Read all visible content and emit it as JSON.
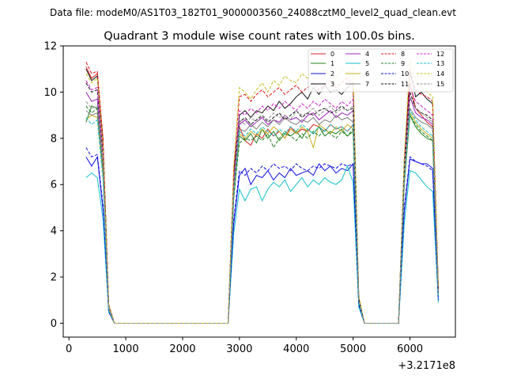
{
  "figure": {
    "suptitle": "Data file: modeM0/AS1T03_182T01_9000003560_24088cztM0_level2_quad_clean.evt"
  },
  "chart_data": {
    "type": "line",
    "title": "Quadrant 3 module wise count rates with 100.0s bins.",
    "xlabel": "",
    "ylabel": "",
    "x_offset_label": "+3.2171e8",
    "xlim": [
      -100,
      6800
    ],
    "ylim": [
      -0.6,
      12
    ],
    "xticks": [
      0,
      1000,
      2000,
      3000,
      4000,
      5000,
      6000
    ],
    "yticks": [
      0,
      2,
      4,
      6,
      8,
      10,
      12
    ],
    "xtick_labels": [
      "0",
      "1000",
      "2000",
      "3000",
      "4000",
      "5000",
      "6000"
    ],
    "ytick_labels": [
      "0",
      "2",
      "4",
      "6",
      "8",
      "10",
      "12"
    ],
    "grid": false,
    "legend_position": "top-right",
    "x": [
      300,
      400,
      500,
      600,
      700,
      800,
      900,
      1000,
      1100,
      1200,
      1300,
      1400,
      1500,
      1600,
      1700,
      1800,
      1900,
      2000,
      2100,
      2200,
      2300,
      2400,
      2500,
      2600,
      2700,
      2800,
      2900,
      3000,
      3100,
      3200,
      3300,
      3400,
      3500,
      3600,
      3700,
      3800,
      3900,
      4000,
      4100,
      4200,
      4300,
      4400,
      4500,
      4600,
      4700,
      4800,
      4900,
      5000,
      5100,
      5200,
      5300,
      5400,
      5500,
      5600,
      5700,
      5800,
      5900,
      6000,
      6100,
      6200,
      6300,
      6400,
      6500
    ],
    "series": [
      {
        "name": "0",
        "color": "#d62020",
        "dash": "solid",
        "values": [
          11.1,
          10.6,
          10.8,
          7.8,
          0.8,
          0.0,
          0.0,
          0.0,
          0.0,
          0.0,
          0.0,
          0.0,
          0.0,
          0.0,
          0.0,
          0.0,
          0.0,
          0.0,
          0.0,
          0.0,
          0.0,
          0.0,
          0.0,
          0.0,
          0.0,
          0.0,
          5.6,
          8.5,
          7.9,
          7.7,
          8.2,
          8.0,
          8.4,
          8.1,
          8.3,
          8.0,
          8.5,
          8.2,
          8.4,
          8.3,
          8.6,
          8.5,
          8.3,
          8.6,
          8.4,
          8.5,
          8.3,
          8.6,
          1.0,
          0.0,
          0.0,
          0.0,
          0.0,
          0.0,
          0.0,
          0.0,
          6.3,
          10.4,
          9.3,
          9.0,
          8.7,
          8.5,
          1.4
        ]
      },
      {
        "name": "1",
        "color": "#208020",
        "dash": "solid",
        "values": [
          8.7,
          9.4,
          9.3,
          6.5,
          0.7,
          0.0,
          0.0,
          0.0,
          0.0,
          0.0,
          0.0,
          0.0,
          0.0,
          0.0,
          0.0,
          0.0,
          0.0,
          0.0,
          0.0,
          0.0,
          0.0,
          0.0,
          0.0,
          0.0,
          0.0,
          0.0,
          5.4,
          8.1,
          7.9,
          8.2,
          7.8,
          8.4,
          8.0,
          8.3,
          7.9,
          8.2,
          8.1,
          8.3,
          8.0,
          8.4,
          8.2,
          8.5,
          8.1,
          8.3,
          8.2,
          8.4,
          8.1,
          8.3,
          0.9,
          0.0,
          0.0,
          0.0,
          0.0,
          0.0,
          0.0,
          0.0,
          6.0,
          9.0,
          8.5,
          8.2,
          8.0,
          7.9,
          1.2
        ]
      },
      {
        "name": "2",
        "color": "#1010e0",
        "dash": "solid",
        "values": [
          7.2,
          6.8,
          7.2,
          4.9,
          0.5,
          0.0,
          0.0,
          0.0,
          0.0,
          0.0,
          0.0,
          0.0,
          0.0,
          0.0,
          0.0,
          0.0,
          0.0,
          0.0,
          0.0,
          0.0,
          0.0,
          0.0,
          0.0,
          0.0,
          0.0,
          0.0,
          4.3,
          6.4,
          6.7,
          6.0,
          6.4,
          6.3,
          6.6,
          6.2,
          6.5,
          6.3,
          6.7,
          6.4,
          6.5,
          6.6,
          6.4,
          6.9,
          6.6,
          6.8,
          6.5,
          6.7,
          6.6,
          6.9,
          0.8,
          0.0,
          0.0,
          0.0,
          0.0,
          0.0,
          0.0,
          0.0,
          4.8,
          7.1,
          7.0,
          6.9,
          6.9,
          6.7,
          1.0
        ]
      },
      {
        "name": "3",
        "color": "#111111",
        "dash": "solid",
        "values": [
          11.0,
          10.5,
          10.7,
          7.9,
          0.8,
          0.0,
          0.0,
          0.0,
          0.0,
          0.0,
          0.0,
          0.0,
          0.0,
          0.0,
          0.0,
          0.0,
          0.0,
          0.0,
          0.0,
          0.0,
          0.0,
          0.0,
          0.0,
          0.0,
          0.0,
          0.0,
          6.5,
          9.0,
          9.2,
          8.9,
          9.2,
          9.1,
          9.4,
          9.2,
          9.6,
          9.3,
          9.5,
          9.8,
          10.0,
          9.7,
          10.2,
          9.9,
          10.3,
          10.0,
          10.1,
          9.9,
          10.2,
          10.4,
          1.1,
          0.0,
          0.0,
          0.0,
          0.0,
          0.0,
          0.0,
          0.0,
          6.9,
          10.9,
          9.8,
          10.0,
          9.7,
          9.5,
          1.6
        ]
      },
      {
        "name": "4",
        "color": "#a020c0",
        "dash": "solid",
        "values": [
          10.0,
          9.6,
          9.7,
          6.8,
          0.7,
          0.0,
          0.0,
          0.0,
          0.0,
          0.0,
          0.0,
          0.0,
          0.0,
          0.0,
          0.0,
          0.0,
          0.0,
          0.0,
          0.0,
          0.0,
          0.0,
          0.0,
          0.0,
          0.0,
          0.0,
          0.0,
          5.9,
          8.6,
          8.8,
          8.5,
          8.7,
          8.9,
          8.6,
          8.8,
          8.7,
          9.0,
          8.8,
          8.9,
          8.7,
          9.0,
          9.1,
          8.8,
          9.0,
          9.2,
          8.9,
          9.1,
          9.0,
          9.2,
          1.0,
          0.0,
          0.0,
          0.0,
          0.0,
          0.0,
          0.0,
          0.0,
          6.4,
          9.8,
          9.1,
          8.9,
          8.8,
          8.6,
          1.3
        ]
      },
      {
        "name": "5",
        "color": "#10c0c8",
        "dash": "solid",
        "values": [
          6.3,
          6.5,
          6.3,
          4.5,
          0.5,
          0.0,
          0.0,
          0.0,
          0.0,
          0.0,
          0.0,
          0.0,
          0.0,
          0.0,
          0.0,
          0.0,
          0.0,
          0.0,
          0.0,
          0.0,
          0.0,
          0.0,
          0.0,
          0.0,
          0.0,
          0.0,
          3.9,
          5.8,
          5.3,
          5.8,
          5.9,
          5.3,
          5.8,
          6.1,
          5.9,
          6.2,
          5.7,
          6.0,
          6.3,
          5.9,
          6.2,
          6.0,
          6.3,
          6.1,
          6.0,
          6.2,
          6.8,
          6.1,
          0.7,
          0.0,
          0.0,
          0.0,
          0.0,
          0.0,
          0.0,
          0.0,
          4.3,
          6.6,
          6.5,
          6.2,
          5.9,
          5.7,
          0.9
        ]
      },
      {
        "name": "6",
        "color": "#c8b020",
        "dash": "solid",
        "values": [
          8.8,
          9.0,
          8.9,
          6.4,
          0.6,
          0.0,
          0.0,
          0.0,
          0.0,
          0.0,
          0.0,
          0.0,
          0.0,
          0.0,
          0.0,
          0.0,
          0.0,
          0.0,
          0.0,
          0.0,
          0.0,
          0.0,
          0.0,
          0.0,
          0.0,
          0.0,
          5.5,
          8.2,
          8.0,
          8.3,
          8.1,
          8.4,
          8.2,
          8.5,
          8.3,
          8.0,
          8.4,
          8.2,
          8.5,
          8.3,
          7.6,
          8.6,
          8.4,
          8.2,
          8.5,
          8.3,
          8.6,
          8.4,
          0.9,
          0.0,
          0.0,
          0.0,
          0.0,
          0.0,
          0.0,
          0.0,
          6.0,
          9.1,
          8.7,
          8.4,
          8.2,
          8.0,
          1.2
        ]
      },
      {
        "name": "7",
        "color": "#808080",
        "dash": "solid",
        "values": [
          9.2,
          9.0,
          9.1,
          6.6,
          0.7,
          0.0,
          0.0,
          0.0,
          0.0,
          0.0,
          0.0,
          0.0,
          0.0,
          0.0,
          0.0,
          0.0,
          0.0,
          0.0,
          0.0,
          0.0,
          0.0,
          0.0,
          0.0,
          0.0,
          0.0,
          0.0,
          5.7,
          8.4,
          8.3,
          8.6,
          8.4,
          8.7,
          8.5,
          8.8,
          8.6,
          8.9,
          8.7,
          8.6,
          8.8,
          8.7,
          8.9,
          8.6,
          8.8,
          8.7,
          9.0,
          8.8,
          8.9,
          8.7,
          1.0,
          0.0,
          0.0,
          0.0,
          0.0,
          0.0,
          0.0,
          0.0,
          6.2,
          9.3,
          8.9,
          8.7,
          8.6,
          8.4,
          1.3
        ]
      },
      {
        "name": "8",
        "color": "#e81010",
        "dash": "dashed",
        "values": [
          11.3,
          10.8,
          10.9,
          8.0,
          0.8,
          0.0,
          0.0,
          0.0,
          0.0,
          0.0,
          0.0,
          0.0,
          0.0,
          0.0,
          0.0,
          0.0,
          0.0,
          0.0,
          0.0,
          0.0,
          0.0,
          0.0,
          0.0,
          0.0,
          0.0,
          0.0,
          6.7,
          9.8,
          9.9,
          9.6,
          9.9,
          10.1,
          9.8,
          10.0,
          10.2,
          9.9,
          10.1,
          10.3,
          10.0,
          10.2,
          10.4,
          10.1,
          10.3,
          10.5,
          10.2,
          10.4,
          10.6,
          10.3,
          1.1,
          0.0,
          0.0,
          0.0,
          0.0,
          0.0,
          0.0,
          0.0,
          7.0,
          11.0,
          10.1,
          9.9,
          9.8,
          9.6,
          1.6
        ]
      },
      {
        "name": "9",
        "color": "#208020",
        "dash": "dashed",
        "values": [
          9.4,
          9.1,
          9.3,
          6.7,
          0.7,
          0.0,
          0.0,
          0.0,
          0.0,
          0.0,
          0.0,
          0.0,
          0.0,
          0.0,
          0.0,
          0.0,
          0.0,
          0.0,
          0.0,
          0.0,
          0.0,
          0.0,
          0.0,
          0.0,
          0.0,
          0.0,
          5.5,
          7.8,
          8.0,
          7.9,
          8.1,
          7.9,
          8.2,
          7.6,
          8.0,
          8.3,
          8.1,
          7.9,
          8.2,
          8.0,
          8.3,
          8.1,
          8.4,
          8.2,
          8.0,
          8.3,
          8.1,
          8.4,
          0.9,
          0.0,
          0.0,
          0.0,
          0.0,
          0.0,
          0.0,
          0.0,
          6.0,
          9.0,
          8.6,
          8.3,
          8.1,
          7.9,
          1.2
        ]
      },
      {
        "name": "10",
        "color": "#1010e0",
        "dash": "dashed",
        "values": [
          7.6,
          7.2,
          7.3,
          5.1,
          0.5,
          0.0,
          0.0,
          0.0,
          0.0,
          0.0,
          0.0,
          0.0,
          0.0,
          0.0,
          0.0,
          0.0,
          0.0,
          0.0,
          0.0,
          0.0,
          0.0,
          0.0,
          0.0,
          0.0,
          0.0,
          0.0,
          4.5,
          6.6,
          6.4,
          6.7,
          6.5,
          6.8,
          6.6,
          6.9,
          6.7,
          6.8,
          6.6,
          6.9,
          6.7,
          6.6,
          6.8,
          6.7,
          6.9,
          6.8,
          6.7,
          6.9,
          6.8,
          6.9,
          0.8,
          0.0,
          0.0,
          0.0,
          0.0,
          0.0,
          0.0,
          0.0,
          5.0,
          7.2,
          7.0,
          6.9,
          6.8,
          6.6,
          1.0
        ]
      },
      {
        "name": "11",
        "color": "#111111",
        "dash": "dashed",
        "values": [
          10.4,
          10.0,
          10.1,
          7.3,
          0.7,
          0.0,
          0.0,
          0.0,
          0.0,
          0.0,
          0.0,
          0.0,
          0.0,
          0.0,
          0.0,
          0.0,
          0.0,
          0.0,
          0.0,
          0.0,
          0.0,
          0.0,
          0.0,
          0.0,
          0.0,
          0.0,
          6.0,
          8.7,
          8.9,
          8.6,
          8.8,
          9.0,
          8.7,
          8.9,
          9.1,
          8.8,
          9.0,
          9.2,
          8.9,
          9.1,
          9.0,
          9.2,
          9.3,
          9.1,
          9.2,
          9.4,
          9.2,
          9.3,
          1.0,
          0.0,
          0.0,
          0.0,
          0.0,
          0.0,
          0.0,
          0.0,
          6.5,
          10.0,
          9.3,
          9.1,
          9.0,
          8.8,
          1.4
        ]
      },
      {
        "name": "12",
        "color": "#d020d0",
        "dash": "dashed",
        "values": [
          10.5,
          10.1,
          10.2,
          7.4,
          0.7,
          0.0,
          0.0,
          0.0,
          0.0,
          0.0,
          0.0,
          0.0,
          0.0,
          0.0,
          0.0,
          0.0,
          0.0,
          0.0,
          0.0,
          0.0,
          0.0,
          0.0,
          0.0,
          0.0,
          0.0,
          0.0,
          6.1,
          9.2,
          9.0,
          9.3,
          9.1,
          9.4,
          9.2,
          9.5,
          9.3,
          9.6,
          9.4,
          9.2,
          9.5,
          9.3,
          9.6,
          9.4,
          9.7,
          9.5,
          9.3,
          9.6,
          9.4,
          9.7,
          1.0,
          0.0,
          0.0,
          0.0,
          0.0,
          0.0,
          0.0,
          0.0,
          6.6,
          10.2,
          9.6,
          9.4,
          9.2,
          9.0,
          1.4
        ]
      },
      {
        "name": "13",
        "color": "#10c0c8",
        "dash": "dashed",
        "values": [
          8.9,
          8.6,
          8.8,
          6.2,
          0.6,
          0.0,
          0.0,
          0.0,
          0.0,
          0.0,
          0.0,
          0.0,
          0.0,
          0.0,
          0.0,
          0.0,
          0.0,
          0.0,
          0.0,
          0.0,
          0.0,
          0.0,
          0.0,
          0.0,
          0.0,
          0.0,
          5.6,
          8.3,
          8.1,
          8.4,
          8.2,
          8.5,
          8.3,
          8.1,
          8.4,
          8.2,
          8.5,
          8.3,
          8.6,
          8.4,
          8.2,
          8.5,
          8.3,
          8.6,
          8.4,
          8.5,
          8.3,
          8.6,
          0.9,
          0.0,
          0.0,
          0.0,
          0.0,
          0.0,
          0.0,
          0.0,
          6.1,
          9.2,
          8.8,
          8.5,
          8.3,
          8.1,
          1.2
        ]
      },
      {
        "name": "14",
        "color": "#c8c020",
        "dash": "dashed",
        "values": [
          10.8,
          10.4,
          10.6,
          7.7,
          0.8,
          0.0,
          0.0,
          0.0,
          0.0,
          0.0,
          0.0,
          0.0,
          0.0,
          0.0,
          0.0,
          0.0,
          0.0,
          0.0,
          0.0,
          0.0,
          0.0,
          0.0,
          0.0,
          0.0,
          0.0,
          0.0,
          6.8,
          10.2,
          10.0,
          9.7,
          10.1,
          10.4,
          10.0,
          10.5,
          10.3,
          10.7,
          10.5,
          10.4,
          10.8,
          10.6,
          10.9,
          10.7,
          11.0,
          10.8,
          10.6,
          11.0,
          10.8,
          11.1,
          1.2,
          0.0,
          0.0,
          0.0,
          0.0,
          0.0,
          0.0,
          0.0,
          7.2,
          11.4,
          10.5,
          10.2,
          10.0,
          9.8,
          1.6
        ]
      },
      {
        "name": "15",
        "color": "#909090",
        "dash": "dashed",
        "values": [
          9.6,
          9.3,
          9.4,
          6.9,
          0.7,
          0.0,
          0.0,
          0.0,
          0.0,
          0.0,
          0.0,
          0.0,
          0.0,
          0.0,
          0.0,
          0.0,
          0.0,
          0.0,
          0.0,
          0.0,
          0.0,
          0.0,
          0.0,
          0.0,
          0.0,
          0.0,
          5.8,
          8.8,
          8.6,
          8.9,
          8.7,
          9.0,
          8.8,
          9.1,
          8.9,
          9.0,
          8.8,
          9.2,
          9.0,
          9.1,
          9.3,
          9.0,
          9.2,
          9.4,
          9.1,
          9.3,
          9.2,
          9.4,
          1.0,
          0.0,
          0.0,
          0.0,
          0.0,
          0.0,
          0.0,
          0.0,
          6.4,
          9.8,
          9.3,
          9.1,
          8.9,
          8.7,
          1.3
        ]
      }
    ]
  }
}
